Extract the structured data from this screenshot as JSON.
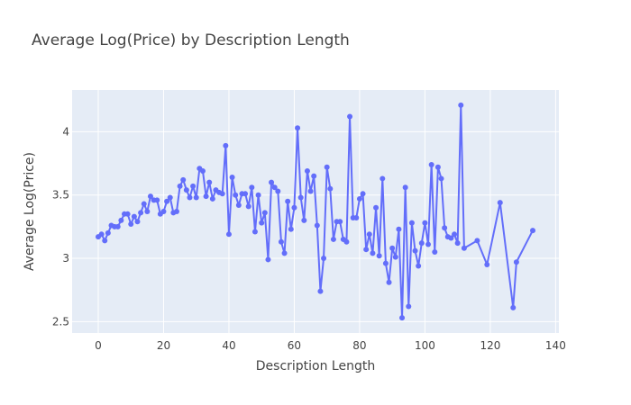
{
  "chart_data": {
    "type": "line",
    "title": "Average Log(Price) by Description Length",
    "xlabel": "Description Length",
    "ylabel": "Average Log(Price)",
    "xlim": [
      -8,
      141
    ],
    "ylim": [
      2.41,
      4.33
    ],
    "xticks": [
      0,
      20,
      40,
      60,
      80,
      100,
      120,
      140
    ],
    "yticks": [
      2.5,
      3,
      3.5,
      4
    ],
    "ytick_labels": [
      "2.5",
      "3",
      "3.5",
      "4"
    ],
    "grid": true,
    "legend": "none",
    "colors": {
      "series": "#636efa",
      "plot_background": "#e5ecf6",
      "grid": "#ffffff",
      "text": "#444444"
    },
    "series": [
      {
        "x": [
          0,
          1,
          2,
          3,
          4,
          5,
          6,
          7,
          8,
          9,
          10,
          11,
          12,
          13,
          14,
          15,
          16,
          17,
          18,
          19,
          20,
          21,
          22,
          23,
          24,
          25,
          26,
          27,
          28,
          29,
          30,
          31,
          32,
          33,
          34,
          35,
          36,
          37,
          38,
          39,
          40,
          41,
          42,
          43,
          44,
          45,
          46,
          47,
          48,
          49,
          50,
          51,
          52,
          53,
          54,
          55,
          56,
          57,
          58,
          59,
          60,
          61,
          62,
          63,
          64,
          65,
          66,
          67,
          68,
          69,
          70,
          71,
          72,
          73,
          74,
          75,
          76,
          77,
          78,
          79,
          80,
          81,
          82,
          83,
          84,
          85,
          86,
          87,
          88,
          89,
          90,
          91,
          92,
          93,
          94,
          95,
          96,
          97,
          98,
          99,
          100,
          101,
          102,
          103,
          104,
          105,
          106,
          107,
          108,
          109,
          110,
          111,
          112,
          116,
          119,
          123,
          127,
          128,
          133
        ],
        "y": [
          3.17,
          3.19,
          3.14,
          3.2,
          3.26,
          3.25,
          3.25,
          3.3,
          3.35,
          3.35,
          3.27,
          3.33,
          3.29,
          3.36,
          3.43,
          3.37,
          3.49,
          3.46,
          3.46,
          3.35,
          3.37,
          3.45,
          3.48,
          3.36,
          3.37,
          3.57,
          3.62,
          3.54,
          3.48,
          3.57,
          3.48,
          3.71,
          3.69,
          3.49,
          3.6,
          3.47,
          3.54,
          3.52,
          3.51,
          3.89,
          3.19,
          3.64,
          3.5,
          3.42,
          3.51,
          3.51,
          3.41,
          3.56,
          3.21,
          3.5,
          3.28,
          3.36,
          2.99,
          3.6,
          3.56,
          3.53,
          3.13,
          3.04,
          3.45,
          3.23,
          3.4,
          4.03,
          3.48,
          3.3,
          3.69,
          3.53,
          3.65,
          3.26,
          2.74,
          3.0,
          3.72,
          3.55,
          3.15,
          3.29,
          3.29,
          3.15,
          3.13,
          4.12,
          3.32,
          3.32,
          3.47,
          3.51,
          3.07,
          3.19,
          3.04,
          3.4,
          3.02,
          3.63,
          2.96,
          2.81,
          3.08,
          3.01,
          3.23,
          2.53,
          3.56,
          2.62,
          3.28,
          3.06,
          2.94,
          3.12,
          3.28,
          3.11,
          3.74,
          3.05,
          3.72,
          3.63,
          3.24,
          3.17,
          3.16,
          3.19,
          3.12,
          4.21,
          3.08,
          3.14,
          2.95,
          3.44,
          2.61,
          2.97,
          3.22
        ]
      }
    ]
  }
}
